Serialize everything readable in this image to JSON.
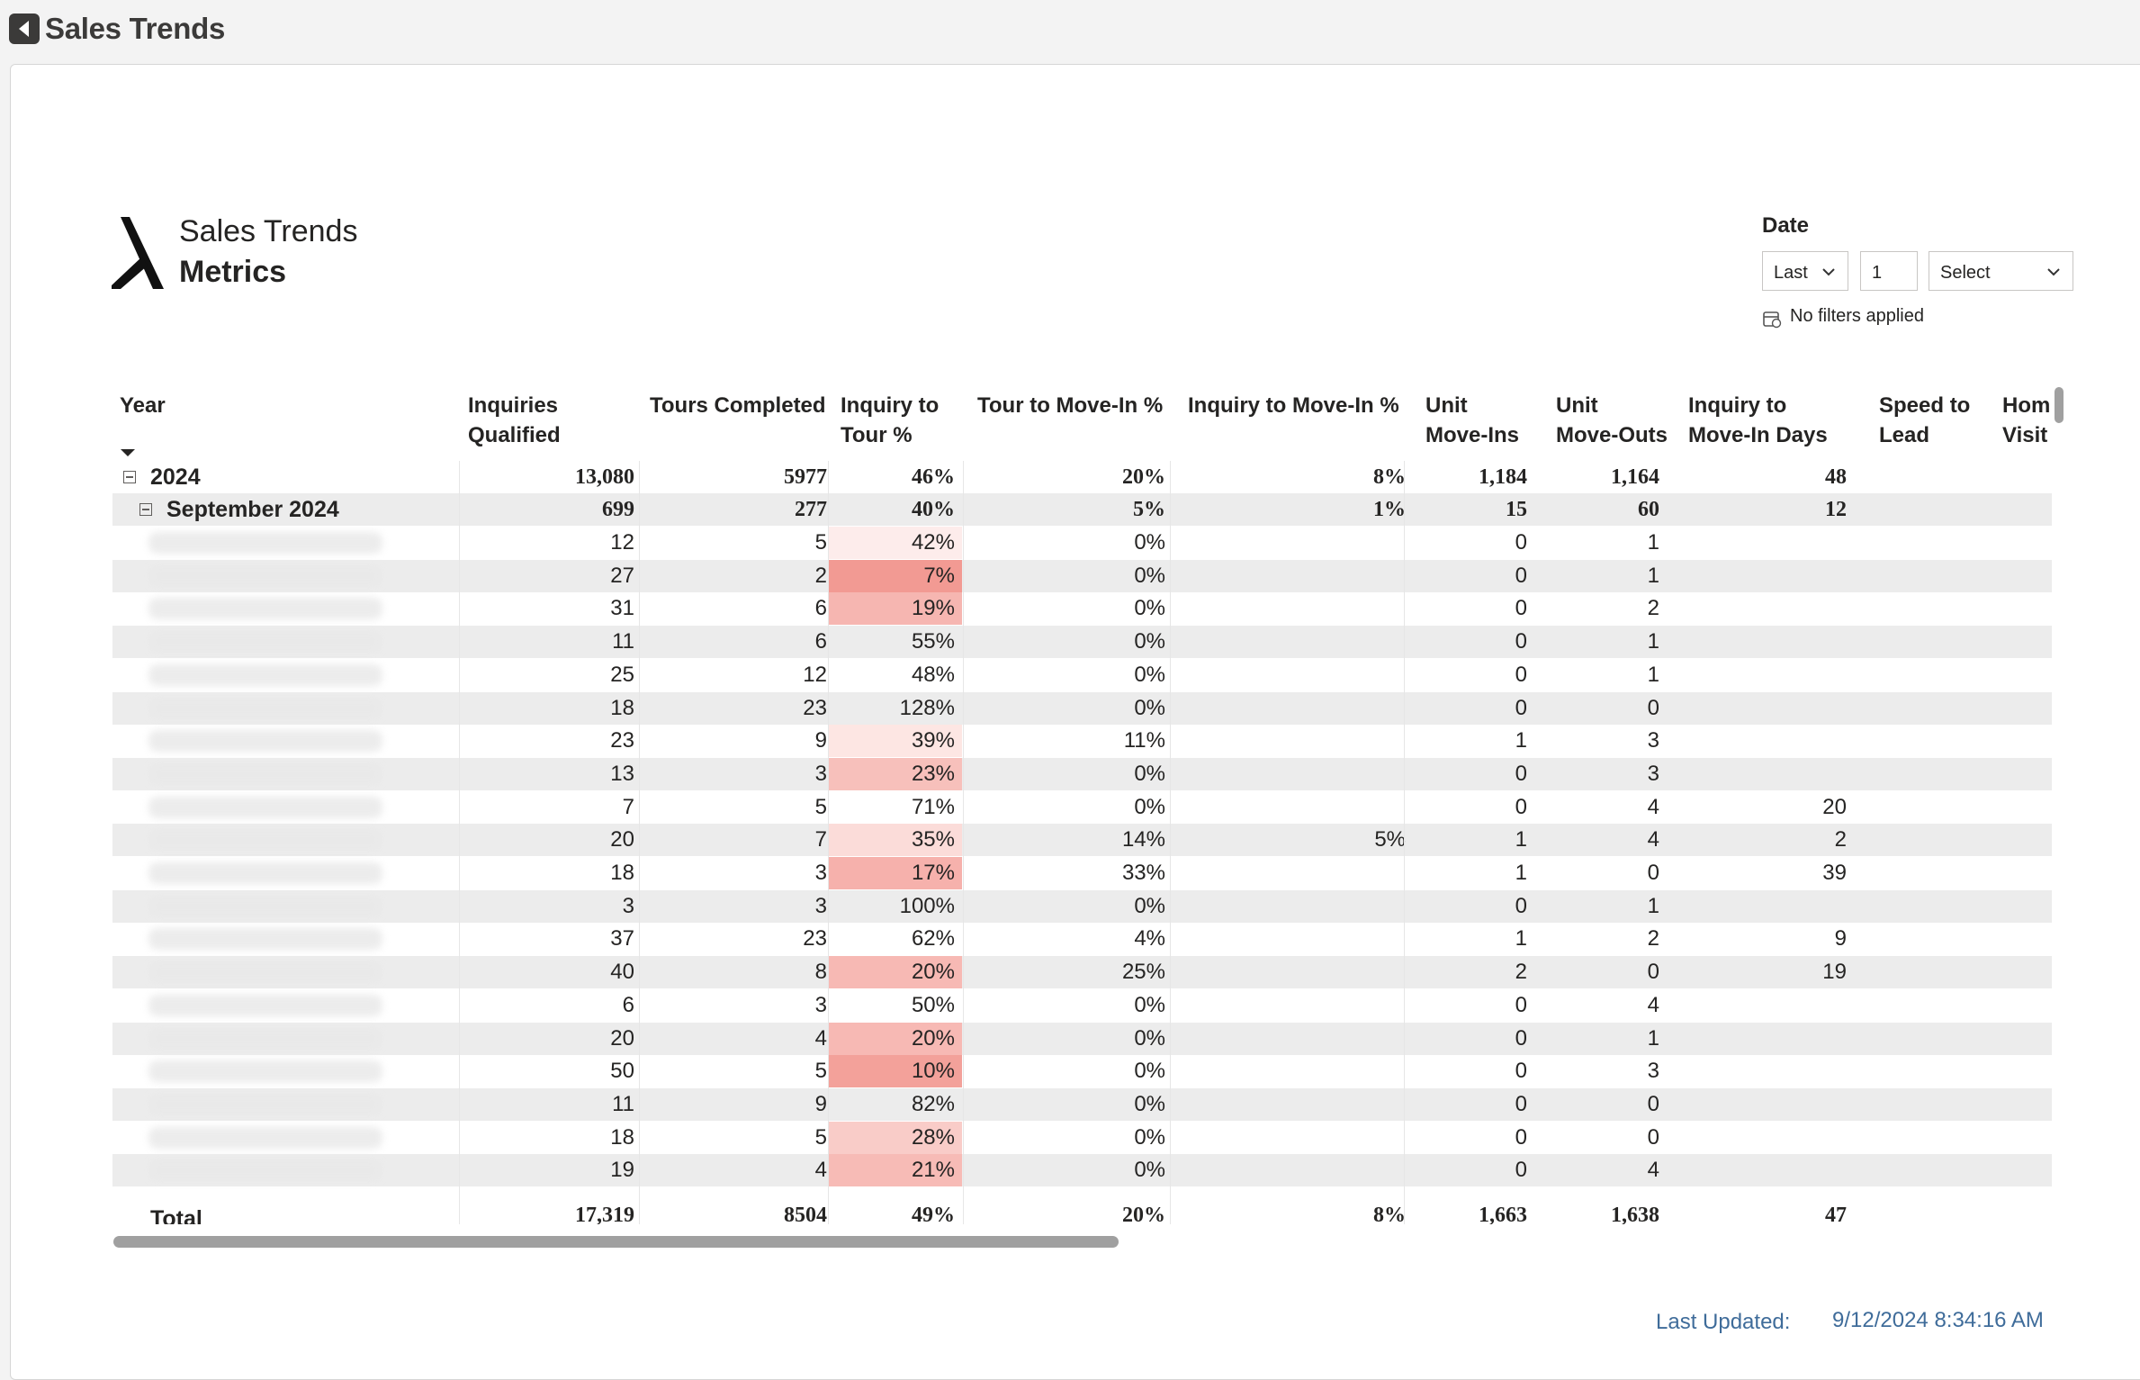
{
  "app": {
    "title": "Sales Trends"
  },
  "report": {
    "title": "Sales Trends",
    "subtitle": "Metrics"
  },
  "date_filter": {
    "label": "Date",
    "relative": "Last",
    "count": "1",
    "unit": "Select",
    "status": "No filters applied"
  },
  "table": {
    "columns": [
      "Year",
      "Inquiries Qualified",
      "Tours Completed",
      "Inquiry to Tour %",
      "Tour to Move-In %",
      "Inquiry to Move-In %",
      "Unit Move-Ins",
      "Unit Move-Outs",
      "Inquiry to Move-In Days",
      "Speed to Lead",
      "Home Visit"
    ],
    "column_lines": [
      [
        "Year",
        ""
      ],
      [
        "Inquiries",
        "Qualified"
      ],
      [
        "Tours Completed",
        ""
      ],
      [
        "Inquiry to",
        "Tour %"
      ],
      [
        "Tour to Move-In %",
        ""
      ],
      [
        "Inquiry to Move-In %",
        ""
      ],
      [
        "Unit",
        "Move-Ins"
      ],
      [
        "Unit",
        "Move-Outs"
      ],
      [
        "Inquiry to",
        "Move-In Days"
      ],
      [
        "Speed to",
        "Lead"
      ],
      [
        "Hom",
        "Visit"
      ]
    ],
    "year_row": {
      "label": "2024",
      "values": [
        "13,080",
        "5977",
        "46%",
        "20%",
        "8%",
        "1,184",
        "1,164",
        "48",
        ""
      ]
    },
    "month_row": {
      "label": "September 2024",
      "values": [
        "699",
        "277",
        "40%",
        "5%",
        "1%",
        "15",
        "60",
        "12",
        ""
      ]
    },
    "rows": [
      {
        "values": [
          "12",
          "5",
          "42%",
          "0%",
          "",
          "0",
          "1",
          "",
          ""
        ],
        "heat": 0.42
      },
      {
        "values": [
          "27",
          "2",
          "7%",
          "0%",
          "",
          "0",
          "1",
          "",
          ""
        ],
        "heat": 0.07
      },
      {
        "values": [
          "31",
          "6",
          "19%",
          "0%",
          "",
          "0",
          "2",
          "",
          ""
        ],
        "heat": 0.19
      },
      {
        "values": [
          "11",
          "6",
          "55%",
          "0%",
          "",
          "0",
          "1",
          "",
          ""
        ],
        "heat": 0.55
      },
      {
        "values": [
          "25",
          "12",
          "48%",
          "0%",
          "",
          "0",
          "1",
          "",
          ""
        ],
        "heat": 0.48
      },
      {
        "values": [
          "18",
          "23",
          "128%",
          "0%",
          "",
          "0",
          "0",
          "",
          ""
        ],
        "heat": 1.28
      },
      {
        "values": [
          "23",
          "9",
          "39%",
          "11%",
          "",
          "1",
          "3",
          "",
          ""
        ],
        "heat": 0.39
      },
      {
        "values": [
          "13",
          "3",
          "23%",
          "0%",
          "",
          "0",
          "3",
          "",
          ""
        ],
        "heat": 0.23
      },
      {
        "values": [
          "7",
          "5",
          "71%",
          "0%",
          "",
          "0",
          "4",
          "20",
          ""
        ],
        "heat": 0.71
      },
      {
        "values": [
          "20",
          "7",
          "35%",
          "14%",
          "5%",
          "1",
          "4",
          "2",
          ""
        ],
        "heat": 0.35
      },
      {
        "values": [
          "18",
          "3",
          "17%",
          "33%",
          "",
          "1",
          "0",
          "39",
          ""
        ],
        "heat": 0.17
      },
      {
        "values": [
          "3",
          "3",
          "100%",
          "0%",
          "",
          "0",
          "1",
          "",
          ""
        ],
        "heat": 1.0
      },
      {
        "values": [
          "37",
          "23",
          "62%",
          "4%",
          "",
          "1",
          "2",
          "9",
          ""
        ],
        "heat": 0.62
      },
      {
        "values": [
          "40",
          "8",
          "20%",
          "25%",
          "",
          "2",
          "0",
          "19",
          ""
        ],
        "heat": 0.2
      },
      {
        "values": [
          "6",
          "3",
          "50%",
          "0%",
          "",
          "0",
          "4",
          "",
          ""
        ],
        "heat": 0.5
      },
      {
        "values": [
          "20",
          "4",
          "20%",
          "0%",
          "",
          "0",
          "1",
          "",
          ""
        ],
        "heat": 0.2
      },
      {
        "values": [
          "50",
          "5",
          "10%",
          "0%",
          "",
          "0",
          "3",
          "",
          ""
        ],
        "heat": 0.1
      },
      {
        "values": [
          "11",
          "9",
          "82%",
          "0%",
          "",
          "0",
          "0",
          "",
          ""
        ],
        "heat": 0.82
      },
      {
        "values": [
          "18",
          "5",
          "28%",
          "0%",
          "",
          "0",
          "0",
          "",
          ""
        ],
        "heat": 0.28
      },
      {
        "values": [
          "19",
          "4",
          "21%",
          "0%",
          "",
          "0",
          "4",
          "",
          ""
        ],
        "heat": 0.21
      }
    ],
    "total_row": {
      "label": "Total",
      "values": [
        "17,319",
        "8504",
        "49%",
        "20%",
        "8%",
        "1,663",
        "1,638",
        "47",
        ""
      ]
    }
  },
  "footer": {
    "last_updated_label": "Last Updated:",
    "last_updated_value": "9/12/2024 8:34:16 AM"
  },
  "colors": {
    "heat_strong": "#f28b82",
    "heat_weak": "#fde8e6",
    "accent_text": "#3f6c9a"
  }
}
